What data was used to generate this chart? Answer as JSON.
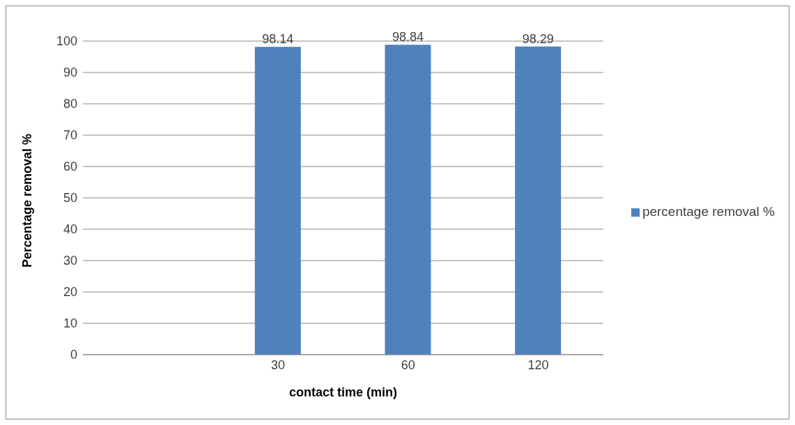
{
  "chart_data": {
    "type": "bar",
    "xlabel": "contact time (min)",
    "ylabel": "Percentage removal %",
    "categories": [
      null,
      "30",
      "60",
      "120"
    ],
    "series": [
      {
        "name": "percentage removal %",
        "color": "#4f81bd",
        "values": [
          null,
          98.14,
          98.84,
          98.29
        ]
      }
    ],
    "ylim": [
      0,
      100
    ],
    "yticks": [
      0,
      10,
      20,
      30,
      40,
      50,
      60,
      70,
      80,
      90,
      100
    ],
    "grid": "y",
    "legend": "right",
    "data_labels": true
  }
}
